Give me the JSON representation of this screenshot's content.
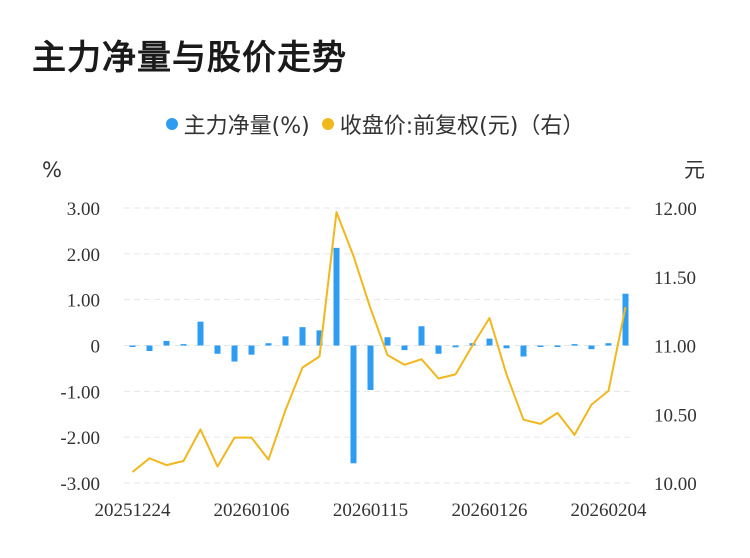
{
  "title": "主力净量与股价走势",
  "colors": {
    "bar": "#2e9cf0",
    "line": "#f0b71e",
    "grid": "#e6e6e6",
    "text": "#333333"
  },
  "legend": {
    "items": [
      {
        "label": "主力净量(%)",
        "color": "#2e9cf0"
      },
      {
        "label": "收盘价:前复权(元)（右）",
        "color": "#f0b71e"
      }
    ]
  },
  "chart_data": {
    "type": "bar+line",
    "left_axis": {
      "unit": "%",
      "ylim": [
        -3.0,
        3.0
      ],
      "ticks": [
        "3.00",
        "2.00",
        "1.00",
        "0",
        "-1.00",
        "-2.00",
        "-3.00"
      ]
    },
    "right_axis": {
      "unit": "元",
      "ylim": [
        10.0,
        12.0
      ],
      "ticks": [
        "12.00",
        "11.50",
        "11.00",
        "10.50",
        "10.00"
      ]
    },
    "x_tick_labels": [
      "20251224",
      "20260106",
      "20260115",
      "20260126",
      "20260204"
    ],
    "grid": true,
    "legend_position": "top",
    "series": [
      {
        "name": "主力净量(%)",
        "type": "bar",
        "axis": "left",
        "values": [
          -0.03,
          -0.12,
          0.1,
          0.03,
          0.52,
          -0.18,
          -0.35,
          -0.2,
          0.05,
          0.2,
          0.4,
          0.33,
          2.13,
          -2.57,
          -0.97,
          0.18,
          -0.1,
          0.42,
          -0.18,
          -0.04,
          0.05,
          0.15,
          -0.06,
          -0.24,
          -0.02,
          -0.02,
          0.03,
          -0.08,
          0.05,
          1.13
        ]
      },
      {
        "name": "收盘价:前复权(元)（右）",
        "type": "line",
        "axis": "right",
        "values": [
          10.08,
          10.18,
          10.13,
          10.16,
          10.39,
          10.12,
          10.33,
          10.33,
          10.17,
          10.53,
          10.84,
          10.92,
          11.97,
          11.65,
          11.27,
          10.93,
          10.86,
          10.9,
          10.76,
          10.79,
          11.0,
          11.2,
          10.79,
          10.46,
          10.43,
          10.51,
          10.35,
          10.57,
          10.67,
          11.28
        ]
      }
    ]
  }
}
